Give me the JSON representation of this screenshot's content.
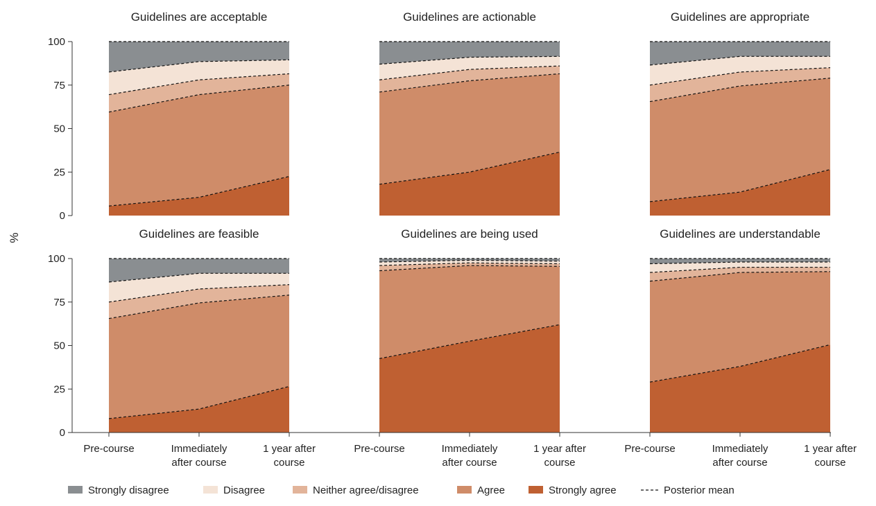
{
  "chart_data": {
    "type": "area",
    "ylabel": "%",
    "ylim": [
      0,
      100
    ],
    "yticks": [
      "0",
      "25",
      "50",
      "75",
      "100"
    ],
    "categories": [
      [
        "Pre-course"
      ],
      [
        "Immediately",
        "after course"
      ],
      [
        "1 year after",
        "course"
      ]
    ],
    "legend": {
      "placement": "bottom",
      "items": [
        {
          "key": "strongly_disagree",
          "label": "Strongly disagree",
          "color": "#8a8e91",
          "kind": "swatch"
        },
        {
          "key": "disagree",
          "label": "Disagree",
          "color": "#f4e3d6",
          "kind": "swatch"
        },
        {
          "key": "neither",
          "label": "Neither agree/disagree",
          "color": "#e2b49a",
          "kind": "swatch"
        },
        {
          "key": "agree",
          "label": "Agree",
          "color": "#cf8c69",
          "kind": "swatch"
        },
        {
          "key": "strongly_agree",
          "label": "Strongly agree",
          "color": "#bf6032",
          "kind": "swatch"
        },
        {
          "key": "posterior_mean",
          "label": "Posterior mean",
          "color": "#111111",
          "kind": "dashed"
        }
      ]
    },
    "panels": [
      {
        "title": "Guidelines are acceptable",
        "cumulative": {
          "strongly_agree": [
            5.5,
            10.5,
            22.5
          ],
          "agree": [
            59.5,
            69.5,
            75
          ],
          "neither": [
            69.5,
            78,
            81.5
          ],
          "disagree": [
            82.5,
            88.5,
            89.5
          ],
          "strongly_disagree": [
            100,
            100,
            100
          ]
        }
      },
      {
        "title": "Guidelines are actionable",
        "cumulative": {
          "strongly_agree": [
            18,
            25,
            36.5
          ],
          "agree": [
            71,
            77.5,
            81.5
          ],
          "neither": [
            78,
            84,
            86
          ],
          "disagree": [
            87,
            91,
            91.5
          ],
          "strongly_disagree": [
            100,
            100,
            100
          ]
        }
      },
      {
        "title": "Guidelines are appropriate",
        "cumulative": {
          "strongly_agree": [
            8,
            13.5,
            26.5
          ],
          "agree": [
            65.5,
            74.5,
            79
          ],
          "neither": [
            75,
            82.5,
            85
          ],
          "disagree": [
            86.5,
            91.5,
            91.5
          ],
          "strongly_disagree": [
            100,
            100,
            100
          ]
        }
      },
      {
        "title": "Guidelines are feasible",
        "cumulative": {
          "strongly_agree": [
            8,
            13.5,
            26.5
          ],
          "agree": [
            65.5,
            74.5,
            79
          ],
          "neither": [
            75,
            82.5,
            85
          ],
          "disagree": [
            86.5,
            91.5,
            91.5
          ],
          "strongly_disagree": [
            100,
            100,
            100
          ]
        }
      },
      {
        "title": "Guidelines are being used",
        "cumulative": {
          "strongly_agree": [
            42.5,
            52.5,
            62
          ],
          "agree": [
            93,
            96,
            95.5
          ],
          "neither": [
            96,
            97.5,
            97
          ],
          "disagree": [
            98,
            99,
            98.5
          ],
          "strongly_disagree": [
            100,
            100,
            100
          ]
        }
      },
      {
        "title": "Guidelines are understandable",
        "cumulative": {
          "strongly_agree": [
            29,
            38,
            50.5
          ],
          "agree": [
            87,
            92,
            92.5
          ],
          "neither": [
            92,
            95,
            95
          ],
          "disagree": [
            97,
            98,
            98
          ],
          "strongly_disagree": [
            100,
            100,
            100
          ]
        }
      }
    ]
  }
}
